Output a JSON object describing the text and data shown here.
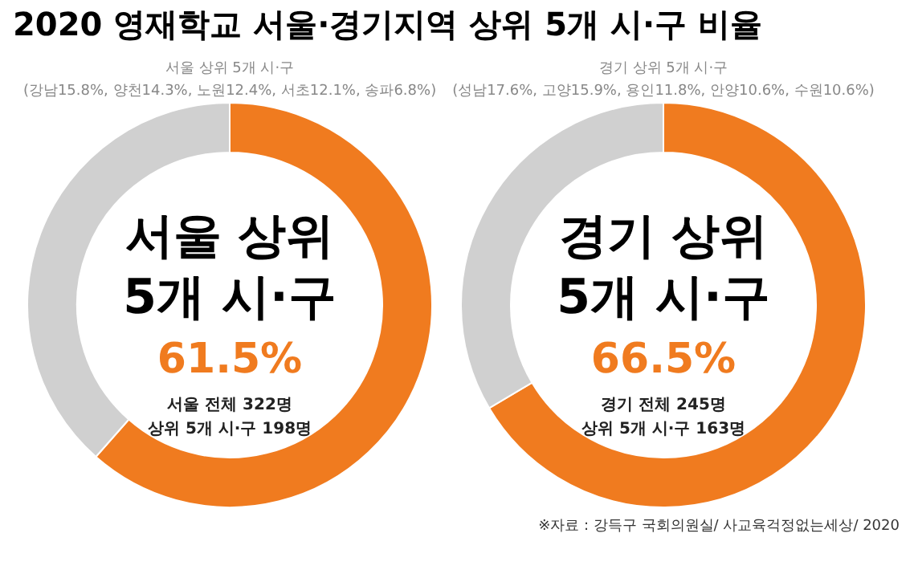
{
  "chart_data": [
    {
      "type": "donut",
      "title": "2020 영재학교 서울·경기지역 상위 5개 시·구 비율",
      "subtitle": "서울 상위 5개 시·구",
      "categories": [
        null,
        null
      ],
      "values": [
        61.5,
        38.5
      ],
      "colors": [
        "#f07b1f",
        "#d0d0d0"
      ],
      "value_labels": [
        "61.5%",
        null
      ],
      "annotations": [
        "(강남15.8%, 양천14.3%, 노원12.4%, 서초12.1%, 송파6.8%)",
        "서울 상위",
        "5개 시·구",
        "서울 전체 322명",
        "상위 5개 시·구 198명"
      ]
    },
    {
      "type": "donut",
      "subtitle": "경기 상위 5개 시·구",
      "categories": [
        null,
        null
      ],
      "values": [
        66.5,
        33.5
      ],
      "colors": [
        "#f07b1f",
        "#d0d0d0"
      ],
      "value_labels": [
        "66.5%",
        null
      ],
      "annotations": [
        "(성남17.6%, 고양15.9%, 용인11.8%, 안양10.6%, 수원10.6%)",
        "경기 상위",
        "5개 시·구",
        "경기 전체 245명",
        "상위 5개 시·구 163명",
        "※자료 : 강득구 국회의원실/ 사교육걱정없는세상/ 2020"
      ]
    }
  ]
}
